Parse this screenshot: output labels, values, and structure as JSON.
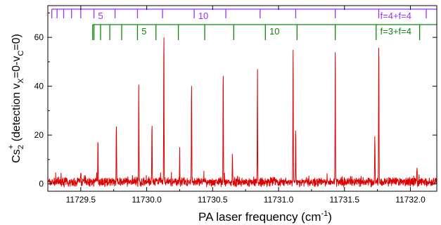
{
  "chart_data": {
    "type": "line",
    "xlabel": {
      "main": "PA laser frequency (cm",
      "sup": "-1",
      "tail": ")"
    },
    "ylabel": {
      "pre": "Cs",
      "sub": "2",
      "sup": "+",
      "post": " (detection v",
      "x_sub": "X",
      "mid": "=0-v",
      "c_sub": "C",
      "end": "=0)"
    },
    "xlim": [
      11729.25,
      11732.2
    ],
    "ylim": [
      -3,
      73
    ],
    "x_ticks": [
      11729.5,
      11730.0,
      11730.5,
      11731.0,
      11731.5,
      11732.0
    ],
    "x_tick_labels": [
      "11729.5",
      "11730.0",
      "11730.5",
      "11731.0",
      "11731.5",
      "11732.0"
    ],
    "y_ticks": [
      0,
      20,
      40,
      60
    ],
    "y_tick_labels": [
      "0",
      "20",
      "40",
      "60"
    ],
    "series_color": "#e00000",
    "baseline": {
      "mean": 0.8,
      "noise_amplitude": 2.2,
      "x_step": 0.0015
    },
    "peaks": [
      {
        "x": 11729.63,
        "y": 18.5
      },
      {
        "x": 11729.77,
        "y": 25
      },
      {
        "x": 11729.94,
        "y": 39.5
      },
      {
        "x": 11730.04,
        "y": 23.5
      },
      {
        "x": 11730.13,
        "y": 62.5
      },
      {
        "x": 11730.34,
        "y": 42.5
      },
      {
        "x": 11730.58,
        "y": 45.5
      },
      {
        "x": 11730.65,
        "y": 11.5
      },
      {
        "x": 11730.84,
        "y": 46.5
      },
      {
        "x": 11731.11,
        "y": 54
      },
      {
        "x": 11731.13,
        "y": 20.5
      },
      {
        "x": 11731.43,
        "y": 56
      },
      {
        "x": 11731.73,
        "y": 19.5
      },
      {
        "x": 11731.76,
        "y": 58
      },
      {
        "x": 11729.5,
        "y": 5
      },
      {
        "x": 11730.25,
        "y": 10
      },
      {
        "x": 11732.05,
        "y": 7
      }
    ],
    "progressions": [
      {
        "color": "#9b30ff",
        "label_text": "f=4+f=4",
        "label_x": 11731.76,
        "ticks": [
          11729.28,
          11729.32,
          11729.37,
          11729.43,
          11729.5,
          11729.6,
          11729.76,
          11729.93,
          11730.12,
          11730.36,
          11730.6,
          11730.86,
          11731.13,
          11731.43,
          11731.76,
          11732.12
        ],
        "numbers": [
          {
            "text": "5",
            "x": 11729.62
          },
          {
            "text": "10",
            "x": 11730.38
          }
        ]
      },
      {
        "color": "#0a8a0a",
        "label_text": "f=3+f=4",
        "label_x": 11731.76,
        "ticks": [
          11729.59,
          11729.6,
          11729.65,
          11729.72,
          11729.81,
          11729.93,
          11730.07,
          11730.24,
          11730.44,
          11730.66,
          11730.9,
          11731.14,
          11731.43,
          11731.74,
          11732.07
        ],
        "numbers": [
          {
            "text": "5",
            "x": 11729.95
          },
          {
            "text": "10",
            "x": 11730.92
          }
        ]
      }
    ]
  }
}
